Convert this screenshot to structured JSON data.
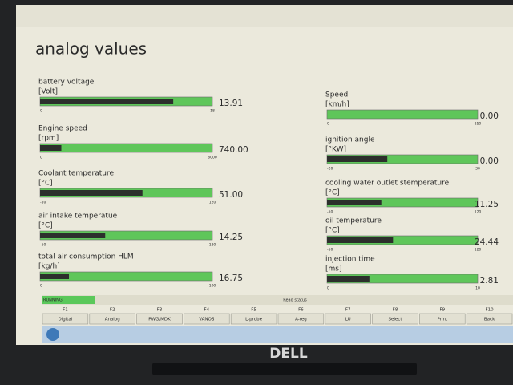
{
  "header": {
    "title": "analog values"
  },
  "gauges": [
    {
      "label": "battery voltage",
      "unit": "[Volt]",
      "min": 0,
      "max": 18,
      "value": 13.91,
      "value_label": "13.91"
    },
    {
      "label": "Engine speed",
      "unit": "[rpm]",
      "min": 0,
      "max": 6000,
      "value": 740,
      "value_label": "740.00"
    },
    {
      "label": "Coolant temperature",
      "unit": "[°C]",
      "min": -50,
      "max": 120,
      "value": 51,
      "value_label": "51.00"
    },
    {
      "label": "air intake temperatue",
      "unit": "[°C]",
      "min": -50,
      "max": 120,
      "value": 14.25,
      "value_label": "14.25"
    },
    {
      "label": "total air consumption HLM",
      "unit": "[kg/h]",
      "min": 0,
      "max": 100,
      "value": 16.75,
      "value_label": "16.75"
    },
    {
      "label": "Speed",
      "unit": "[km/h]",
      "min": 0,
      "max": 250,
      "value": 0,
      "value_label": "0.00"
    },
    {
      "label": "ignition angle",
      "unit": "[°KW]",
      "min": -20,
      "max": 30,
      "value": 0,
      "value_label": "0.00"
    },
    {
      "label": "cooling water outlet stemperature",
      "unit": "[°C]",
      "min": -50,
      "max": 120,
      "value": 11.25,
      "value_label": "11.25"
    },
    {
      "label": "oil temperature",
      "unit": "[°C]",
      "min": -50,
      "max": 120,
      "value": 24.44,
      "value_label": "24.44"
    },
    {
      "label": "injection time",
      "unit": "[ms]",
      "min": 0,
      "max": 10,
      "value": 2.81,
      "value_label": "2.81"
    }
  ],
  "status": {
    "state": "RUNNING",
    "center": "Read status"
  },
  "function_keys": [
    {
      "key": "F1",
      "label": "Digital"
    },
    {
      "key": "F2",
      "label": "Analog"
    },
    {
      "key": "F3",
      "label": "PWG/MDK"
    },
    {
      "key": "F4",
      "label": "VANOS"
    },
    {
      "key": "F5",
      "label": "L-probe"
    },
    {
      "key": "F6",
      "label": "A-reg"
    },
    {
      "key": "F7",
      "label": "LU"
    },
    {
      "key": "F8",
      "label": "Select"
    },
    {
      "key": "F9",
      "label": "Print"
    },
    {
      "key": "F10",
      "label": "Back"
    }
  ],
  "brand": "DELL"
}
